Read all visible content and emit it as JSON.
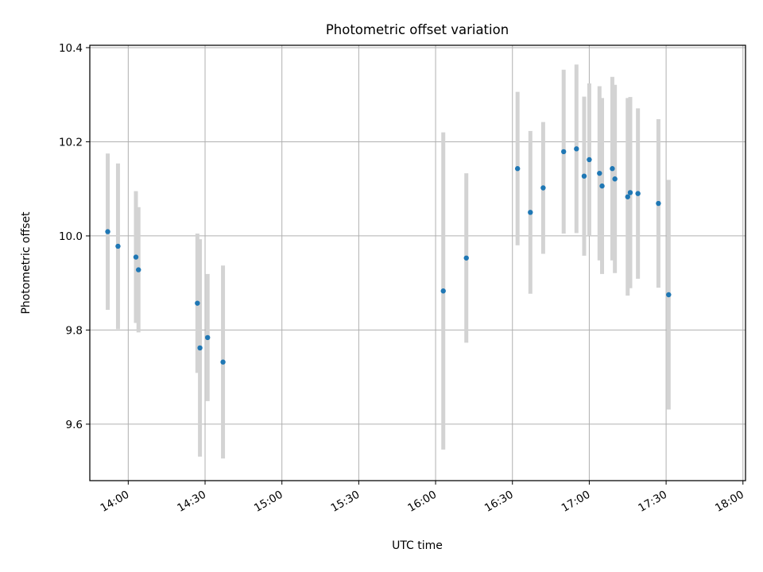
{
  "chart_data": {
    "type": "scatter",
    "title": "Photometric offset variation",
    "xlabel": "UTC time",
    "ylabel": "Photometric offset",
    "x_ticks": [
      "14:00",
      "14:30",
      "15:00",
      "15:30",
      "16:00",
      "16:30",
      "17:00",
      "17:30",
      "18:00"
    ],
    "y_ticks": [
      "9.6",
      "9.8",
      "10.0",
      "10.2",
      "10.4"
    ],
    "x_range": [
      "13:45",
      "18:01"
    ],
    "ylim": [
      9.48,
      10.405
    ],
    "grid": true,
    "legend": "none",
    "series": [
      {
        "points": [
          {
            "x": "13:52",
            "y": 10.009,
            "err": 0.166
          },
          {
            "x": "13:56",
            "y": 9.978,
            "err": 0.176
          },
          {
            "x": "14:03",
            "y": 9.955,
            "err": 0.14
          },
          {
            "x": "14:04",
            "y": 9.928,
            "err": 0.133
          },
          {
            "x": "14:27",
            "y": 9.857,
            "err": 0.148
          },
          {
            "x": "14:28",
            "y": 9.762,
            "err": 0.231
          },
          {
            "x": "14:31",
            "y": 9.784,
            "err": 0.135
          },
          {
            "x": "14:37",
            "y": 9.732,
            "err": 0.205
          },
          {
            "x": "16:03",
            "y": 9.883,
            "err": 0.337
          },
          {
            "x": "16:12",
            "y": 9.953,
            "err": 0.18
          },
          {
            "x": "16:32",
            "y": 10.143,
            "err": 0.163
          },
          {
            "x": "16:37",
            "y": 10.05,
            "err": 0.173
          },
          {
            "x": "16:42",
            "y": 10.102,
            "err": 0.14
          },
          {
            "x": "16:50",
            "y": 10.179,
            "err": 0.174
          },
          {
            "x": "16:55",
            "y": 10.185,
            "err": 0.179
          },
          {
            "x": "16:58",
            "y": 10.127,
            "err": 0.169
          },
          {
            "x": "17:00",
            "y": 10.162,
            "err": 0.162
          },
          {
            "x": "17:04",
            "y": 10.133,
            "err": 0.185
          },
          {
            "x": "17:05",
            "y": 10.106,
            "err": 0.187
          },
          {
            "x": "17:09",
            "y": 10.143,
            "err": 0.195
          },
          {
            "x": "17:10",
            "y": 10.121,
            "err": 0.2
          },
          {
            "x": "17:15",
            "y": 10.083,
            "err": 0.21
          },
          {
            "x": "17:16",
            "y": 10.092,
            "err": 0.203
          },
          {
            "x": "17:19",
            "y": 10.09,
            "err": 0.181
          },
          {
            "x": "17:27",
            "y": 10.069,
            "err": 0.179
          },
          {
            "x": "17:31",
            "y": 9.875,
            "err": 0.244
          }
        ]
      }
    ],
    "colors": {
      "points": "#1f77b4",
      "errorbars": "#d3d3d3",
      "grid": "#b0b0b0",
      "axes": "#000000"
    }
  }
}
